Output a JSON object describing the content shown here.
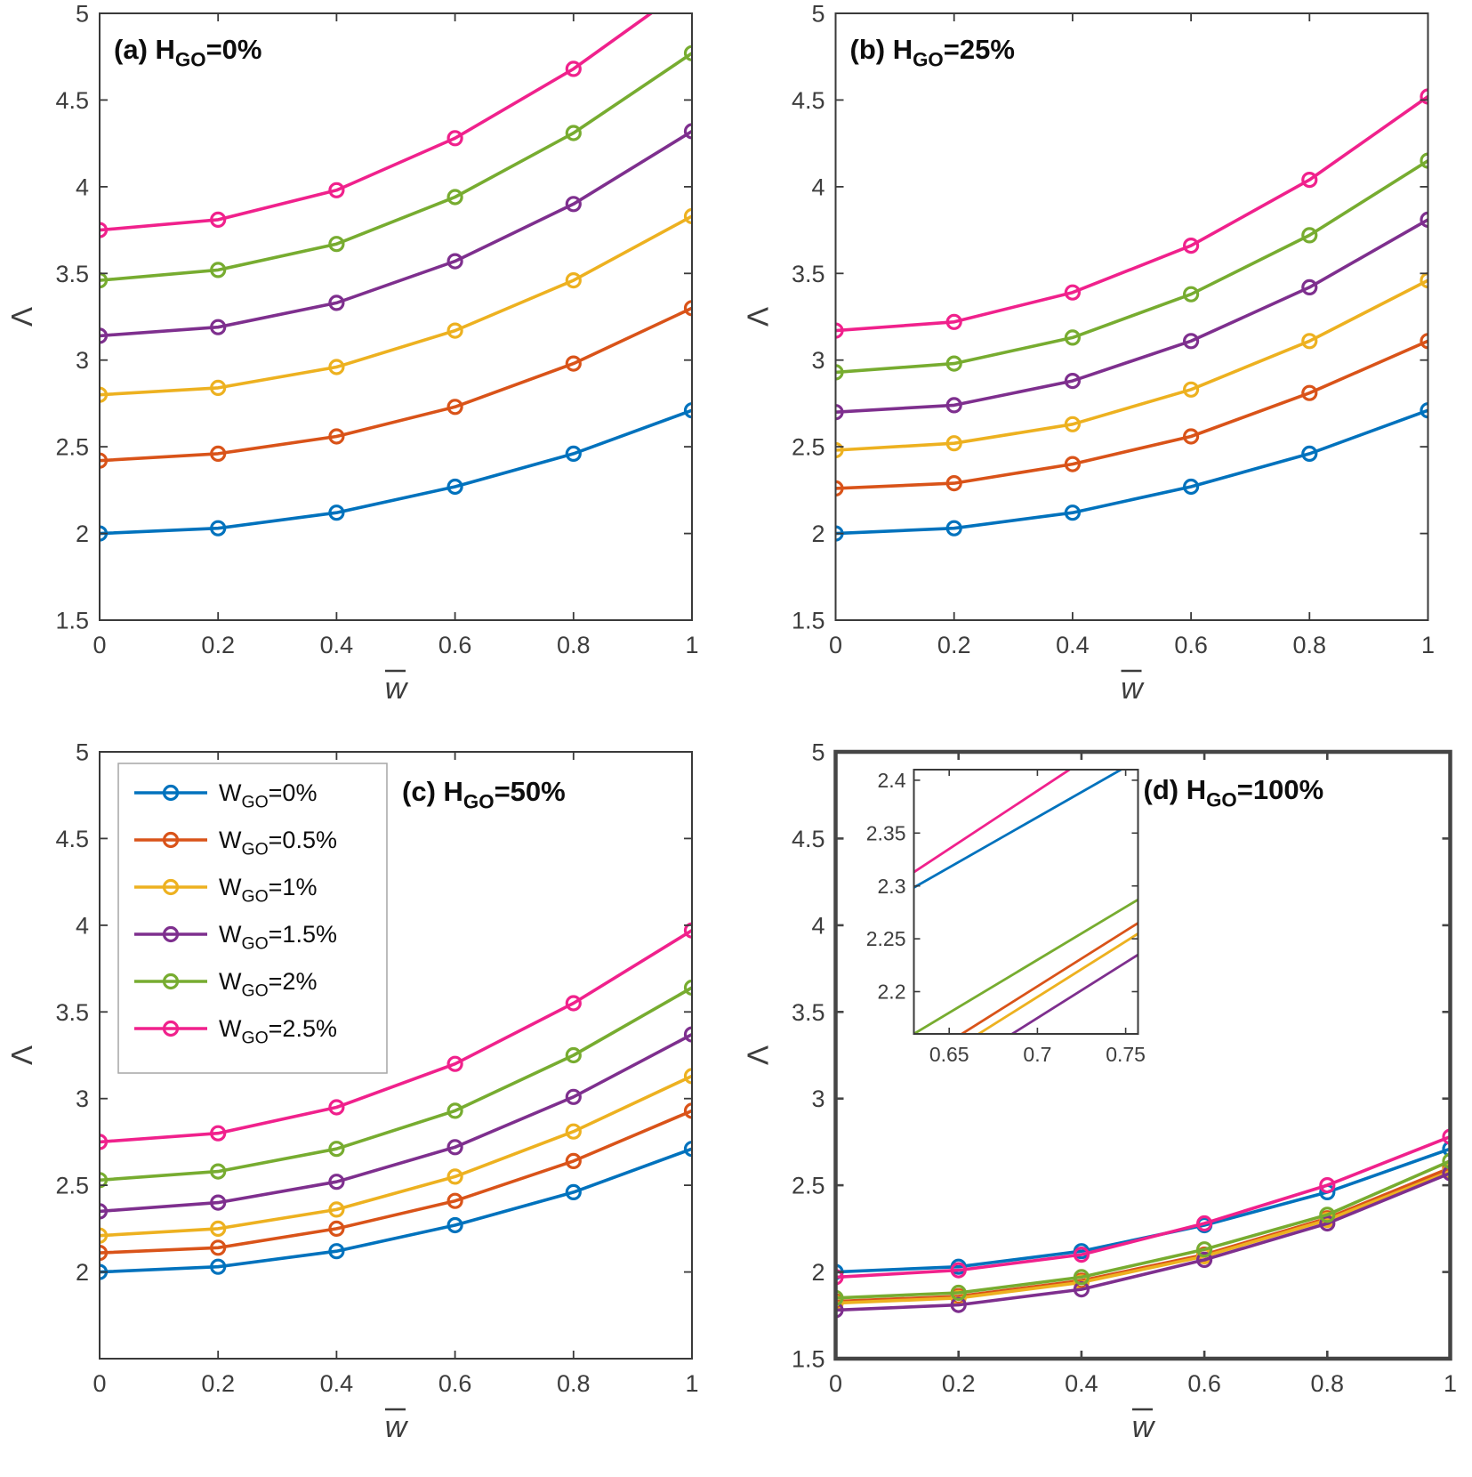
{
  "figure": {
    "description": "Dimensionless frequency parameter versus deflection for different GO weight fractions",
    "background": "#ffffff"
  },
  "style": {
    "frame_color": "#3a3a3a",
    "frame_color_thick": "#454545",
    "tick_text_color": "#3d3d3d",
    "title_text_color": "#0d0d0d",
    "legend_border_color": "#a6a6a6",
    "series_palette": [
      "#0072BD",
      "#D95319",
      "#EDB120",
      "#7E2F8E",
      "#77AC30",
      "#F0218C"
    ]
  },
  "legend": {
    "entries": [
      {
        "name": "W_GO=0%",
        "pre": "W",
        "sub": "GO",
        "tail": "=0%",
        "color": "#0072BD"
      },
      {
        "name": "W_GO=0.5%",
        "pre": "W",
        "sub": "GO",
        "tail": "=0.5%",
        "color": "#D95319"
      },
      {
        "name": "W_GO=1%",
        "pre": "W",
        "sub": "GO",
        "tail": "=1%",
        "color": "#EDB120"
      },
      {
        "name": "W_GO=1.5%",
        "pre": "W",
        "sub": "GO",
        "tail": "=1.5%",
        "color": "#7E2F8E"
      },
      {
        "name": "W_GO=2%",
        "pre": "W",
        "sub": "GO",
        "tail": "=2%",
        "color": "#77AC30"
      },
      {
        "name": "W_GO=2.5%",
        "pre": "W",
        "sub": "GO",
        "tail": "=2.5%",
        "color": "#F0218C"
      }
    ]
  },
  "chart_data": [
    {
      "id": "a",
      "type": "line",
      "title": {
        "pre": "(a) H",
        "sub": "GO",
        "tail": "=0%"
      },
      "xlabel": "w̄",
      "ylabel": "Λ",
      "x": [
        0,
        0.2,
        0.4,
        0.6,
        0.8,
        1
      ],
      "xlim": [
        0,
        1
      ],
      "ylim": [
        1.5,
        5
      ],
      "xticks": [
        0,
        0.2,
        0.4,
        0.6,
        0.8,
        1
      ],
      "xtick_labels": [
        "0",
        "0.2",
        "0.4",
        "0.6",
        "0.8",
        "1"
      ],
      "yticks": [
        1.5,
        2,
        2.5,
        3,
        3.5,
        4,
        4.5,
        5
      ],
      "ytick_labels": [
        "1.5",
        "2",
        "2.5",
        "3",
        "3.5",
        "4",
        "4.5",
        "5"
      ],
      "markers": true,
      "grid": false,
      "series": [
        {
          "name": "W_GO=0%",
          "color": "#0072BD",
          "values": [
            2.0,
            2.03,
            2.12,
            2.27,
            2.46,
            2.71
          ]
        },
        {
          "name": "W_GO=0.5%",
          "color": "#D95319",
          "values": [
            2.42,
            2.46,
            2.56,
            2.73,
            2.98,
            3.3
          ]
        },
        {
          "name": "W_GO=1%",
          "color": "#EDB120",
          "values": [
            2.8,
            2.84,
            2.96,
            3.17,
            3.46,
            3.83
          ]
        },
        {
          "name": "W_GO=1.5%",
          "color": "#7E2F8E",
          "values": [
            3.14,
            3.19,
            3.33,
            3.57,
            3.9,
            4.32
          ]
        },
        {
          "name": "W_GO=2%",
          "color": "#77AC30",
          "values": [
            3.46,
            3.52,
            3.67,
            3.94,
            4.31,
            4.77
          ]
        },
        {
          "name": "W_GO=2.5%",
          "color": "#F0218C",
          "values": [
            3.75,
            3.81,
            3.98,
            4.28,
            4.68,
            5.17
          ]
        }
      ]
    },
    {
      "id": "b",
      "type": "line",
      "title": {
        "pre": "(b) H",
        "sub": "GO",
        "tail": "=25%"
      },
      "xlabel": "w̄",
      "ylabel": "Λ",
      "x": [
        0,
        0.2,
        0.4,
        0.6,
        0.8,
        1
      ],
      "xlim": [
        0,
        1
      ],
      "ylim": [
        1.5,
        5
      ],
      "xticks": [
        0,
        0.2,
        0.4,
        0.6,
        0.8,
        1
      ],
      "xtick_labels": [
        "0",
        "0.2",
        "0.4",
        "0.6",
        "0.8",
        "1"
      ],
      "yticks": [
        1.5,
        2,
        2.5,
        3,
        3.5,
        4,
        4.5,
        5
      ],
      "ytick_labels": [
        "1.5",
        "2",
        "2.5",
        "3",
        "3.5",
        "4",
        "4.5",
        "5"
      ],
      "markers": true,
      "grid": false,
      "series": [
        {
          "name": "W_GO=0%",
          "color": "#0072BD",
          "values": [
            2.0,
            2.03,
            2.12,
            2.27,
            2.46,
            2.71
          ]
        },
        {
          "name": "W_GO=0.5%",
          "color": "#D95319",
          "values": [
            2.26,
            2.29,
            2.4,
            2.56,
            2.81,
            3.11
          ]
        },
        {
          "name": "W_GO=1%",
          "color": "#EDB120",
          "values": [
            2.48,
            2.52,
            2.63,
            2.83,
            3.11,
            3.46
          ]
        },
        {
          "name": "W_GO=1.5%",
          "color": "#7E2F8E",
          "values": [
            2.7,
            2.74,
            2.88,
            3.11,
            3.42,
            3.81
          ]
        },
        {
          "name": "W_GO=2%",
          "color": "#77AC30",
          "values": [
            2.93,
            2.98,
            3.13,
            3.38,
            3.72,
            4.15
          ]
        },
        {
          "name": "W_GO=2.5%",
          "color": "#F0218C",
          "values": [
            3.17,
            3.22,
            3.39,
            3.66,
            4.04,
            4.52
          ]
        }
      ]
    },
    {
      "id": "c",
      "type": "line",
      "title": {
        "pre": "(c) H",
        "sub": "GO",
        "tail": "=50%"
      },
      "xlabel": "w̄",
      "ylabel": "Λ",
      "x": [
        0,
        0.2,
        0.4,
        0.6,
        0.8,
        1
      ],
      "xlim": [
        0,
        1
      ],
      "ylim": [
        1.5,
        5
      ],
      "xticks": [
        0,
        0.2,
        0.4,
        0.6,
        0.8,
        1
      ],
      "xtick_labels": [
        "0",
        "0.2",
        "0.4",
        "0.6",
        "0.8",
        "1"
      ],
      "yticks": [
        2,
        2.5,
        3,
        3.5,
        4,
        4.5,
        5
      ],
      "ytick_labels": [
        "2",
        "2.5",
        "3",
        "3.5",
        "4",
        "4.5",
        "5"
      ],
      "markers": true,
      "grid": false,
      "show_legend": true,
      "series": [
        {
          "name": "W_GO=0%",
          "color": "#0072BD",
          "values": [
            2.0,
            2.03,
            2.12,
            2.27,
            2.46,
            2.71
          ]
        },
        {
          "name": "W_GO=0.5%",
          "color": "#D95319",
          "values": [
            2.11,
            2.14,
            2.25,
            2.41,
            2.64,
            2.93
          ]
        },
        {
          "name": "W_GO=1%",
          "color": "#EDB120",
          "values": [
            2.21,
            2.25,
            2.36,
            2.55,
            2.81,
            3.13
          ]
        },
        {
          "name": "W_GO=1.5%",
          "color": "#7E2F8E",
          "values": [
            2.35,
            2.4,
            2.52,
            2.72,
            3.01,
            3.37
          ]
        },
        {
          "name": "W_GO=2%",
          "color": "#77AC30",
          "values": [
            2.53,
            2.58,
            2.71,
            2.93,
            3.25,
            3.64
          ]
        },
        {
          "name": "W_GO=2.5%",
          "color": "#F0218C",
          "values": [
            2.75,
            2.8,
            2.95,
            3.2,
            3.55,
            3.97
          ]
        }
      ]
    },
    {
      "id": "d",
      "type": "line",
      "title": {
        "pre": "(d) H",
        "sub": "GO",
        "tail": "=100%"
      },
      "xlabel": "w̄",
      "ylabel": "Λ",
      "x": [
        0,
        0.2,
        0.4,
        0.6,
        0.8,
        1
      ],
      "xlim": [
        0,
        1
      ],
      "ylim": [
        1.5,
        5
      ],
      "xticks": [
        0,
        0.2,
        0.4,
        0.6,
        0.8,
        1
      ],
      "xtick_labels": [
        "0",
        "0.2",
        "0.4",
        "0.6",
        "0.8",
        "1"
      ],
      "yticks": [
        1.5,
        2,
        2.5,
        3,
        3.5,
        4,
        4.5,
        5
      ],
      "ytick_labels": [
        "1.5",
        "2",
        "2.5",
        "3",
        "3.5",
        "4",
        "4.5",
        "5"
      ],
      "markers": true,
      "grid": false,
      "thick_frame": true,
      "series": [
        {
          "name": "W_GO=0%",
          "color": "#0072BD",
          "values": [
            2.0,
            2.03,
            2.12,
            2.27,
            2.46,
            2.71
          ]
        },
        {
          "name": "W_GO=0.5%",
          "color": "#D95319",
          "values": [
            1.83,
            1.86,
            1.95,
            2.1,
            2.31,
            2.6
          ]
        },
        {
          "name": "W_GO=1%",
          "color": "#EDB120",
          "values": [
            1.82,
            1.85,
            1.94,
            2.09,
            2.3,
            2.58
          ]
        },
        {
          "name": "W_GO=1.5%",
          "color": "#7E2F8E",
          "values": [
            1.78,
            1.81,
            1.9,
            2.07,
            2.28,
            2.57
          ]
        },
        {
          "name": "W_GO=2%",
          "color": "#77AC30",
          "values": [
            1.85,
            1.88,
            1.97,
            2.13,
            2.33,
            2.64
          ]
        },
        {
          "name": "W_GO=2.5%",
          "color": "#F0218C",
          "values": [
            1.97,
            2.01,
            2.1,
            2.28,
            2.5,
            2.78
          ]
        }
      ],
      "inset": {
        "xlim": [
          0.63,
          0.757
        ],
        "ylim": [
          2.16,
          2.41
        ],
        "xticks": [
          0.65,
          0.7,
          0.75
        ],
        "xtick_labels": [
          "0.65",
          "0.7",
          "0.75"
        ],
        "yticks": [
          2.2,
          2.25,
          2.3,
          2.35,
          2.4
        ],
        "ytick_labels": [
          "2.2",
          "2.25",
          "2.3",
          "2.35",
          "2.4"
        ],
        "markers": false
      }
    }
  ]
}
